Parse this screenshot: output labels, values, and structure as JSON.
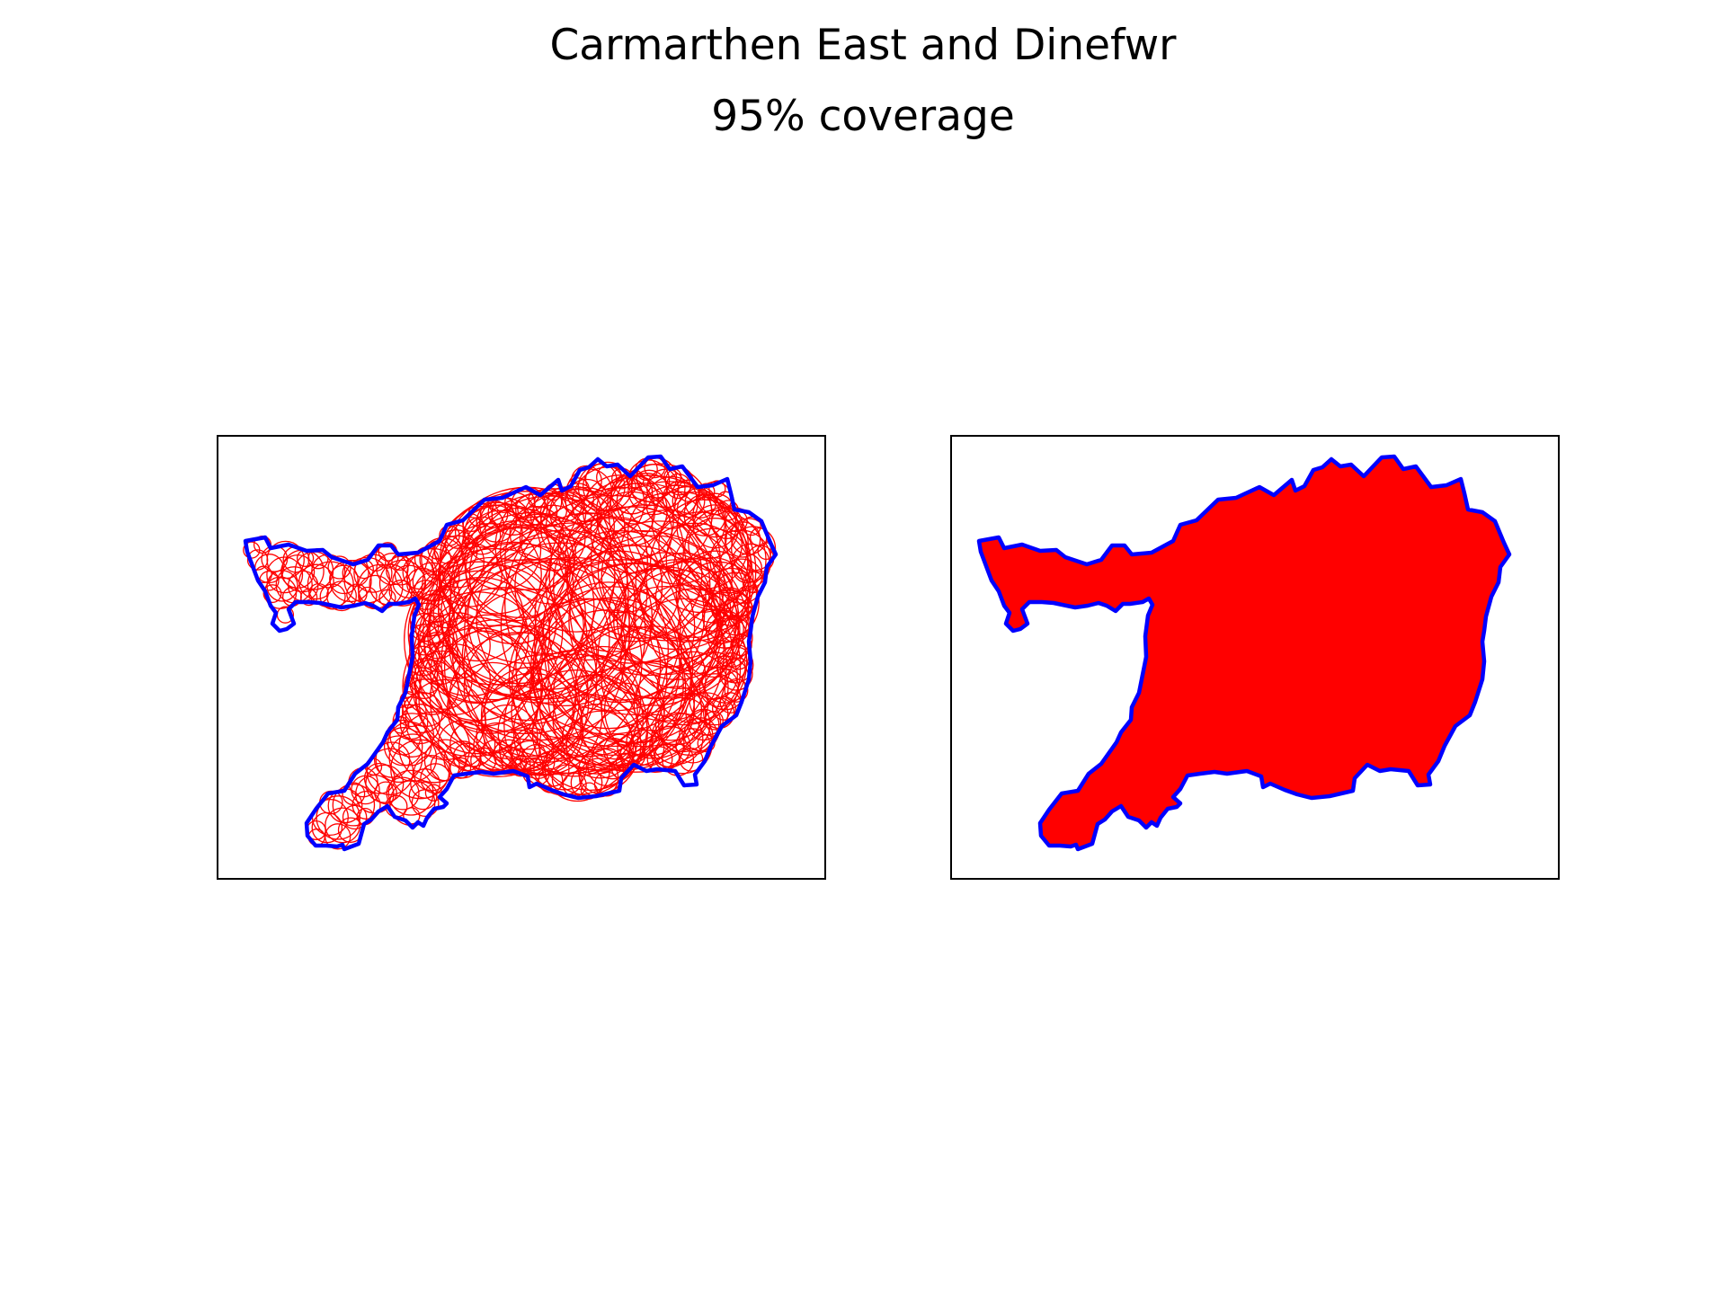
{
  "figure": {
    "title_line1": "Carmarthen East and Dinefwr",
    "title_line2": "95% coverage"
  },
  "colors": {
    "boundary": "#0000ff",
    "coverage": "#ff0000",
    "axes_frame": "#000000",
    "background": "#ffffff"
  },
  "panels": [
    {
      "id": "left",
      "style": "circle-outlines"
    },
    {
      "id": "right",
      "style": "filled-union"
    }
  ]
}
